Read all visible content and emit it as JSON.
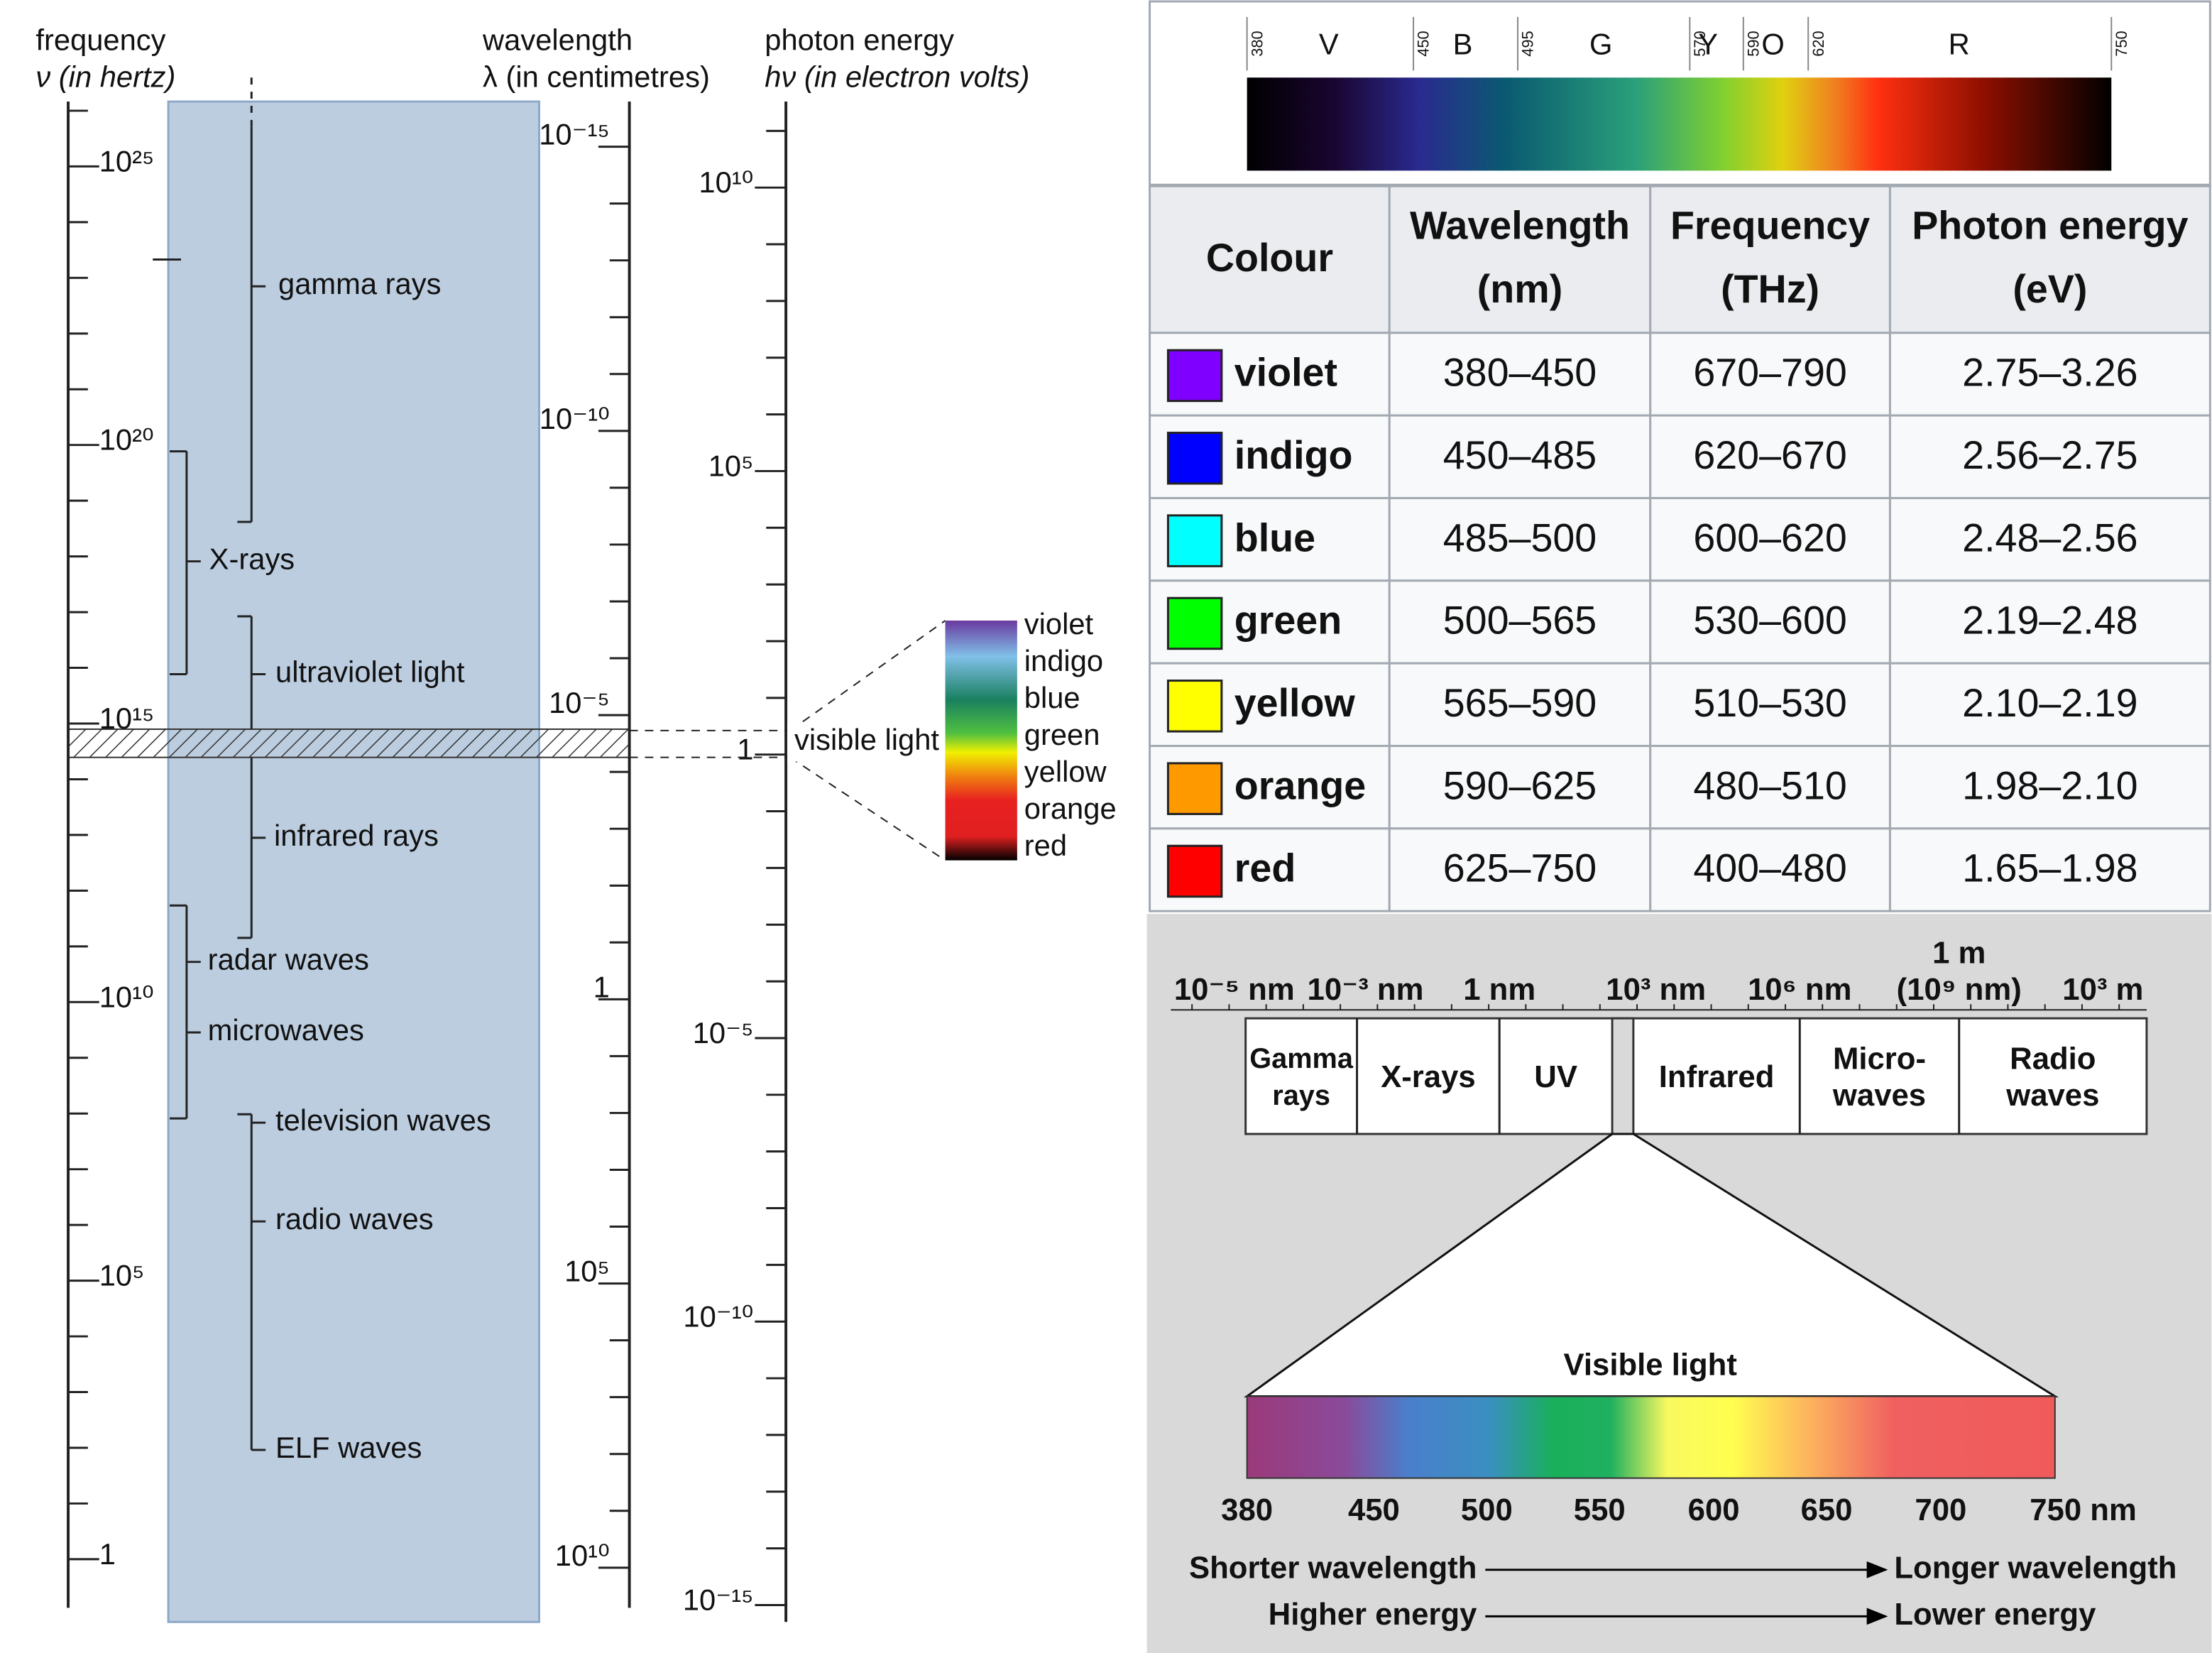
{
  "left": {
    "frequency_title": "frequency",
    "frequency_unit": "ν (in hertz)",
    "wavelength_title": "wavelength",
    "wavelength_unit": "λ (in centimetres)",
    "energy_title": "photon energy",
    "energy_unit": "hν (in electron volts)",
    "frequency_labels": [
      "10²⁵",
      "10²⁰",
      "10¹⁵",
      "10¹⁰",
      "10⁵",
      "1"
    ],
    "wavelength_labels": [
      "10⁻¹⁵",
      "10⁻¹⁰",
      "10⁻⁵",
      "1",
      "10⁵",
      "10¹⁰"
    ],
    "energy_labels": [
      "10¹⁰",
      "10⁵",
      "1",
      "10⁻⁵",
      "10⁻¹⁰",
      "10⁻¹⁵"
    ],
    "bands": [
      "gamma rays",
      "X-rays",
      "ultraviolet light",
      "infrared rays",
      "radar waves",
      "microwaves",
      "television waves",
      "radio waves",
      "ELF waves"
    ],
    "visible_label": "visible light",
    "visible_colors": [
      "violet",
      "indigo",
      "blue",
      "green",
      "yellow",
      "orange",
      "red"
    ]
  },
  "spectrum": {
    "ticks": [
      "380",
      "450",
      "495",
      "570",
      "590",
      "620",
      "750"
    ],
    "letters": [
      "V",
      "B",
      "G",
      "Y",
      "O",
      "R"
    ]
  },
  "table": {
    "header": [
      {
        "title": "Colour"
      },
      {
        "title": "Wavelength",
        "unit": "(nm)"
      },
      {
        "title": "Frequency",
        "unit": "(THz)"
      },
      {
        "title": "Photon energy",
        "unit": "(eV)"
      }
    ],
    "rows": [
      {
        "color": "#8000ff",
        "name": "violet",
        "wavelength": "380–450",
        "frequency": "670–790",
        "energy": "2.75–3.26"
      },
      {
        "color": "#0000ff",
        "name": "indigo",
        "wavelength": "450–485",
        "frequency": "620–670",
        "energy": "2.56–2.75"
      },
      {
        "color": "#00ffff",
        "name": "blue",
        "wavelength": "485–500",
        "frequency": "600–620",
        "energy": "2.48–2.56"
      },
      {
        "color": "#00ff00",
        "name": "green",
        "wavelength": "500–565",
        "frequency": "530–600",
        "energy": "2.19–2.48"
      },
      {
        "color": "#ffff00",
        "name": "yellow",
        "wavelength": "565–590",
        "frequency": "510–530",
        "energy": "2.10–2.19"
      },
      {
        "color": "#ff9900",
        "name": "orange",
        "wavelength": "590–625",
        "frequency": "480–510",
        "energy": "1.98–2.10"
      },
      {
        "color": "#ff0000",
        "name": "red",
        "wavelength": "625–750",
        "frequency": "400–480",
        "energy": "1.65–1.98"
      }
    ]
  },
  "scale": {
    "labels": [
      {
        "lines": [
          "10⁻⁵ nm"
        ]
      },
      {
        "lines": [
          "10⁻³ nm"
        ]
      },
      {
        "lines": [
          "1 nm"
        ]
      },
      {
        "lines": [
          "10³ nm"
        ]
      },
      {
        "lines": [
          "10⁶ nm"
        ]
      },
      {
        "lines": [
          "1 m",
          "(10⁹ nm)"
        ]
      },
      {
        "lines": [
          "10³ m"
        ]
      }
    ],
    "bands": [
      {
        "lines": [
          "Gamma",
          "rays"
        ]
      },
      {
        "lines": [
          "X-rays"
        ]
      },
      {
        "lines": [
          "UV"
        ]
      },
      {
        "lines": [
          "Infrared"
        ]
      },
      {
        "lines": [
          "Micro-",
          "waves"
        ]
      },
      {
        "lines": [
          "Radio",
          "waves"
        ]
      }
    ],
    "visible_title": "Visible light",
    "visible_axis": [
      "380",
      "450",
      "500",
      "550",
      "600",
      "650",
      "700",
      "750 nm"
    ],
    "arrows": [
      {
        "from": "Shorter wavelength",
        "to": "Longer wavelength"
      },
      {
        "from": "Higher energy",
        "to": "Lower energy"
      }
    ]
  }
}
